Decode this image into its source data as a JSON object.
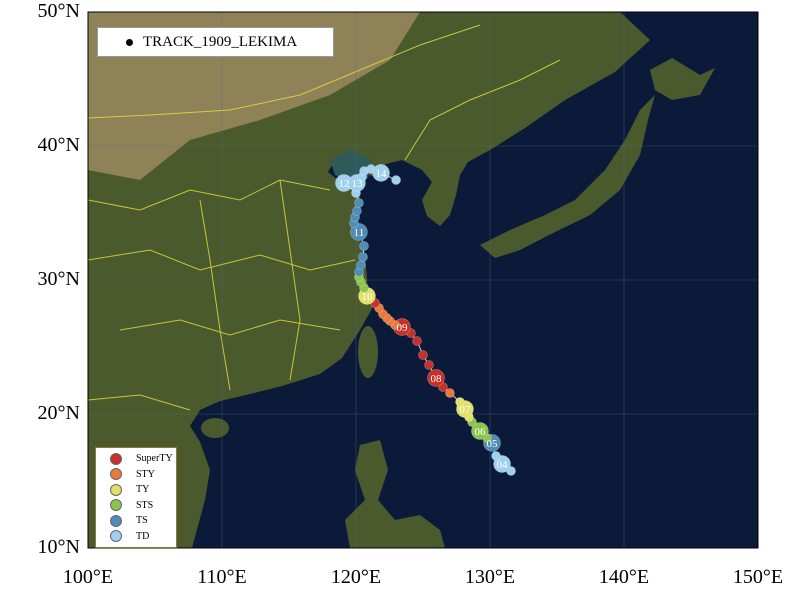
{
  "map": {
    "extent": {
      "lon": [
        100,
        150
      ],
      "lat": [
        10,
        50
      ]
    },
    "x_ticks": [
      "100°E",
      "110°E",
      "120°E",
      "130°E",
      "140°E",
      "150°E"
    ],
    "y_ticks": [
      "50°N",
      "40°N",
      "30°N",
      "20°N",
      "10°N"
    ],
    "colors": {
      "ocean": "#0c1a3a",
      "land": "#4b5a2c",
      "desert": "#9a8a5e",
      "borders": "#e8e040",
      "grid": "#5a6a8a"
    }
  },
  "track_legend": {
    "label": "TRACK_1909_LEKIMA"
  },
  "categories": [
    {
      "name": "SuperTY",
      "color": "#c8302a"
    },
    {
      "name": "STY",
      "color": "#e8793a"
    },
    {
      "name": "TY",
      "color": "#e2e06a"
    },
    {
      "name": "STS",
      "color": "#8cc54e"
    },
    {
      "name": "TS",
      "color": "#4f8db8"
    },
    {
      "name": "TD",
      "color": "#9fd0ee"
    }
  ],
  "track": [
    {
      "lon": 131.57,
      "lat": 15.75,
      "cat": "TD"
    },
    {
      "lon": 130.9,
      "lat": 16.27,
      "cat": "TD",
      "label": "04"
    },
    {
      "lon": 130.45,
      "lat": 16.87,
      "cat": "TD"
    },
    {
      "lon": 130.15,
      "lat": 17.84,
      "cat": "TS",
      "label": "05"
    },
    {
      "lon": 129.78,
      "lat": 18.21,
      "cat": "STS"
    },
    {
      "lon": 129.25,
      "lat": 18.73,
      "cat": "STS",
      "label": "06"
    },
    {
      "lon": 128.66,
      "lat": 19.4,
      "cat": "STS"
    },
    {
      "lon": 128.43,
      "lat": 19.78,
      "cat": "TY"
    },
    {
      "lon": 128.13,
      "lat": 20.37,
      "cat": "TY",
      "label": "07"
    },
    {
      "lon": 127.76,
      "lat": 20.9,
      "cat": "TY"
    },
    {
      "lon": 127.01,
      "lat": 21.57,
      "cat": "STY"
    },
    {
      "lon": 126.49,
      "lat": 22.01,
      "cat": "SuperTY"
    },
    {
      "lon": 125.97,
      "lat": 22.69,
      "cat": "SuperTY",
      "label": "08"
    },
    {
      "lon": 125.45,
      "lat": 23.66,
      "cat": "SuperTY"
    },
    {
      "lon": 125.0,
      "lat": 24.4,
      "cat": "SuperTY"
    },
    {
      "lon": 124.55,
      "lat": 25.45,
      "cat": "SuperTY"
    },
    {
      "lon": 124.1,
      "lat": 26.04,
      "cat": "SuperTY"
    },
    {
      "lon": 123.43,
      "lat": 26.49,
      "cat": "SuperTY",
      "label": "09"
    },
    {
      "lon": 122.91,
      "lat": 26.64,
      "cat": "STY"
    },
    {
      "lon": 122.54,
      "lat": 26.94,
      "cat": "STY"
    },
    {
      "lon": 122.31,
      "lat": 27.16,
      "cat": "STY"
    },
    {
      "lon": 122.01,
      "lat": 27.46,
      "cat": "STY"
    },
    {
      "lon": 121.72,
      "lat": 27.91,
      "cat": "STY"
    },
    {
      "lon": 121.42,
      "lat": 28.28,
      "cat": "SuperTY"
    },
    {
      "lon": 120.82,
      "lat": 28.81,
      "cat": "TY",
      "label": "10"
    },
    {
      "lon": 120.6,
      "lat": 29.4,
      "cat": "STS"
    },
    {
      "lon": 120.37,
      "lat": 29.85,
      "cat": "STS"
    },
    {
      "lon": 120.22,
      "lat": 30.22,
      "cat": "STS"
    },
    {
      "lon": 120.22,
      "lat": 30.6,
      "cat": "TS"
    },
    {
      "lon": 120.37,
      "lat": 31.12,
      "cat": "TS"
    },
    {
      "lon": 120.52,
      "lat": 31.72,
      "cat": "TS"
    },
    {
      "lon": 120.6,
      "lat": 32.54,
      "cat": "TS"
    },
    {
      "lon": 120.22,
      "lat": 33.58,
      "cat": "TS",
      "label": "11"
    },
    {
      "lon": 119.85,
      "lat": 34.25,
      "cat": "TS"
    },
    {
      "lon": 119.93,
      "lat": 34.7,
      "cat": "TS"
    },
    {
      "lon": 120.07,
      "lat": 35.15,
      "cat": "TS"
    },
    {
      "lon": 120.22,
      "lat": 35.75,
      "cat": "TS"
    },
    {
      "lon": 120.0,
      "lat": 36.49,
      "cat": "TD"
    },
    {
      "lon": 119.1,
      "lat": 37.24,
      "cat": "TD",
      "label": "12"
    },
    {
      "lon": 120.07,
      "lat": 37.24,
      "cat": "TD",
      "label": "13"
    },
    {
      "lon": 120.45,
      "lat": 37.69,
      "cat": "TD"
    },
    {
      "lon": 120.6,
      "lat": 38.13,
      "cat": "TD"
    },
    {
      "lon": 121.12,
      "lat": 38.28,
      "cat": "TD"
    },
    {
      "lon": 121.87,
      "lat": 37.99,
      "cat": "TD",
      "label": "14"
    },
    {
      "lon": 122.99,
      "lat": 37.46,
      "cat": "TD"
    }
  ]
}
